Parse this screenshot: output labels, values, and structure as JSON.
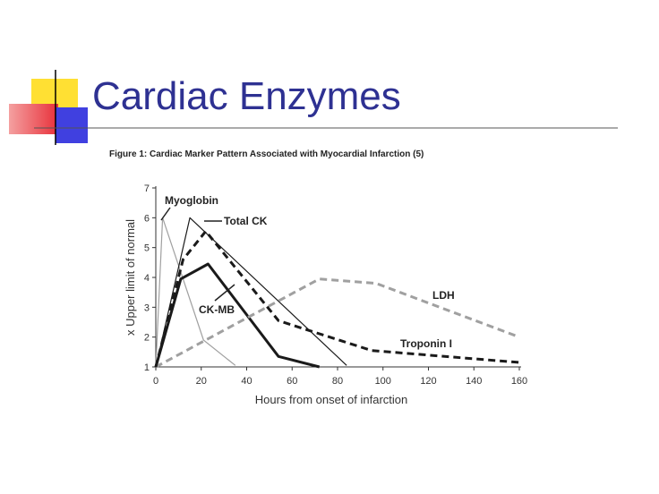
{
  "title": "Cardiac Enzymes",
  "chart_data": {
    "type": "line",
    "title": "Figure 1:  Cardiac Marker Pattern Associated with Myocardial Infarction (5)",
    "x_label": "Hours from  onset of infarction",
    "y_label": "x Upper limit of normal",
    "xlim": [
      0,
      160
    ],
    "xticks": [
      0,
      20,
      40,
      60,
      80,
      100,
      120,
      140,
      160
    ],
    "ylim": [
      1,
      7
    ],
    "yticks": [
      1,
      2,
      3,
      4,
      5,
      6,
      7
    ],
    "series": [
      {
        "name": "Myoglobin",
        "color": "#a0a0a0",
        "dashed": false,
        "x": [
          0,
          3,
          21,
          35
        ],
        "values": [
          1,
          6,
          1.9,
          1.05
        ]
      },
      {
        "name": "Total CK",
        "color": "#1a1a1a",
        "dashed": false,
        "x": [
          0,
          15,
          84
        ],
        "values": [
          1,
          6,
          1.05
        ]
      },
      {
        "name": "CK-MB",
        "color": "#1a1a1a",
        "dashed": false,
        "x": [
          0,
          11,
          23,
          54,
          72
        ],
        "values": [
          1,
          3.95,
          4.45,
          1.35,
          1
        ]
      },
      {
        "name": "LDH",
        "color": "#a0a0a0",
        "dashed": true,
        "x": [
          0,
          72,
          97,
          160
        ],
        "values": [
          1,
          3.95,
          3.8,
          2
        ]
      },
      {
        "name": "Troponin I",
        "color": "#1a1a1a",
        "dashed": true,
        "x": [
          0,
          12,
          22,
          54,
          95,
          160
        ],
        "values": [
          1,
          4.6,
          5.55,
          2.55,
          1.55,
          1.15
        ]
      }
    ]
  }
}
